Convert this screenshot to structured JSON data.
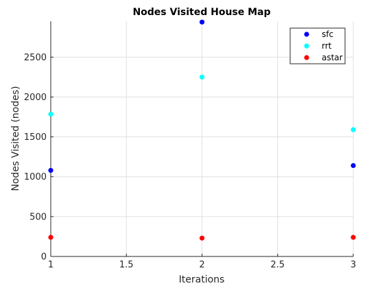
{
  "chart_data": {
    "type": "scatter",
    "title": "Nodes Visited House Map",
    "xlabel": "Iterations",
    "ylabel": "Nodes Visited (nodes)",
    "xlim": [
      1,
      3
    ],
    "ylim": [
      0,
      2950
    ],
    "xticks": [
      "1",
      "1.5",
      "2",
      "2.5",
      "3"
    ],
    "yticks": [
      "0",
      "500",
      "1000",
      "1500",
      "2000",
      "2500"
    ],
    "grid": true,
    "legend_position": "top-right",
    "series": [
      {
        "name": "sfc",
        "color": "#0000ff",
        "x": [
          1,
          2,
          3
        ],
        "y": [
          1080,
          2940,
          1140
        ]
      },
      {
        "name": "rrt",
        "color": "#00ffff",
        "x": [
          1,
          2,
          3
        ],
        "y": [
          1785,
          2250,
          1590
        ]
      },
      {
        "name": "astar",
        "color": "#ff0000",
        "x": [
          1,
          2,
          3
        ],
        "y": [
          240,
          230,
          240
        ]
      }
    ]
  }
}
